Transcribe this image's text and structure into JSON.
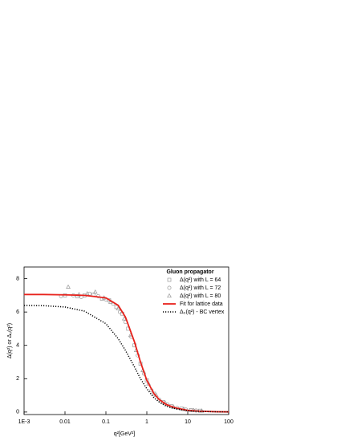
{
  "chart_data": {
    "type": "line",
    "x_label": "q²[GeV²]",
    "y_label": "Δ(q²) or Δ₀(q²)",
    "legend_title": "Gluon propagator",
    "legend": "top-right",
    "xscale": "log",
    "xlim": [
      0.001,
      100
    ],
    "ylim": [
      -0.15,
      8.7
    ],
    "xticks": [
      {
        "value": 0.001,
        "label": "1E-3"
      },
      0.01,
      0.1,
      1,
      10,
      100
    ],
    "yticks": [
      0,
      2,
      4,
      6,
      8
    ],
    "series": [
      {
        "name": "Δ(q²) with L = 64",
        "kind": "marker",
        "marker": "square",
        "color": "#999999",
        "x": [
          0.01,
          0.02,
          0.03,
          0.05,
          0.08,
          0.12,
          0.18,
          0.25,
          0.35,
          0.5,
          0.7,
          1,
          1.5,
          2.5,
          4,
          7,
          12,
          20
        ],
        "values": [
          7.0,
          6.95,
          7.0,
          7.05,
          6.8,
          6.7,
          6.3,
          5.9,
          5.0,
          4.0,
          2.9,
          1.9,
          1.1,
          0.6,
          0.35,
          0.2,
          0.12,
          0.08
        ]
      },
      {
        "name": "Δ(q²) with L = 72",
        "kind": "marker",
        "marker": "circle",
        "color": "#999999",
        "x": [
          0.008,
          0.016,
          0.025,
          0.04,
          0.065,
          0.1,
          0.15,
          0.22,
          0.3,
          0.42,
          0.6,
          0.85,
          1.3,
          2,
          3.2,
          5.5,
          9,
          16
        ],
        "values": [
          6.95,
          7.0,
          6.9,
          7.1,
          6.95,
          6.75,
          6.5,
          6.0,
          5.4,
          4.5,
          3.4,
          2.3,
          1.3,
          0.75,
          0.45,
          0.25,
          0.15,
          0.09
        ]
      },
      {
        "name": "Δ(q²) with L = 80",
        "kind": "marker",
        "marker": "triangle",
        "color": "#999999",
        "x": [
          0.012,
          0.022,
          0.035,
          0.055,
          0.09,
          0.13,
          0.2,
          0.28,
          0.4,
          0.55,
          0.8,
          1.1,
          1.7,
          2.8,
          4.5,
          8,
          14,
          22
        ],
        "values": [
          7.5,
          7.05,
          7.1,
          7.2,
          6.85,
          6.6,
          6.2,
          5.6,
          4.6,
          3.7,
          2.5,
          1.7,
          1.0,
          0.55,
          0.3,
          0.17,
          0.1,
          0.07
        ]
      },
      {
        "name": "Fit for lattice data",
        "kind": "line",
        "color": "#e8221c",
        "x": [
          0.001,
          0.003,
          0.01,
          0.03,
          0.1,
          0.2,
          0.3,
          0.5,
          0.7,
          1,
          1.5,
          2,
          3,
          5,
          10,
          20,
          50,
          100
        ],
        "values": [
          7.05,
          7.05,
          7.03,
          7.0,
          6.85,
          6.4,
          5.7,
          4.2,
          3.0,
          1.9,
          1.1,
          0.75,
          0.45,
          0.25,
          0.1,
          0.05,
          0.02,
          0.01
        ]
      },
      {
        "name": "Δ₀(q²) - BC vertex",
        "kind": "dotted",
        "color": "#000000",
        "x": [
          0.001,
          0.003,
          0.01,
          0.03,
          0.1,
          0.2,
          0.3,
          0.5,
          0.7,
          1,
          1.5,
          2,
          3,
          5,
          10,
          20,
          50,
          100
        ],
        "values": [
          6.4,
          6.38,
          6.3,
          6.05,
          5.3,
          4.4,
          3.7,
          2.7,
          2.0,
          1.4,
          0.85,
          0.6,
          0.35,
          0.2,
          0.08,
          0.04,
          0.015,
          0.01
        ]
      }
    ]
  }
}
